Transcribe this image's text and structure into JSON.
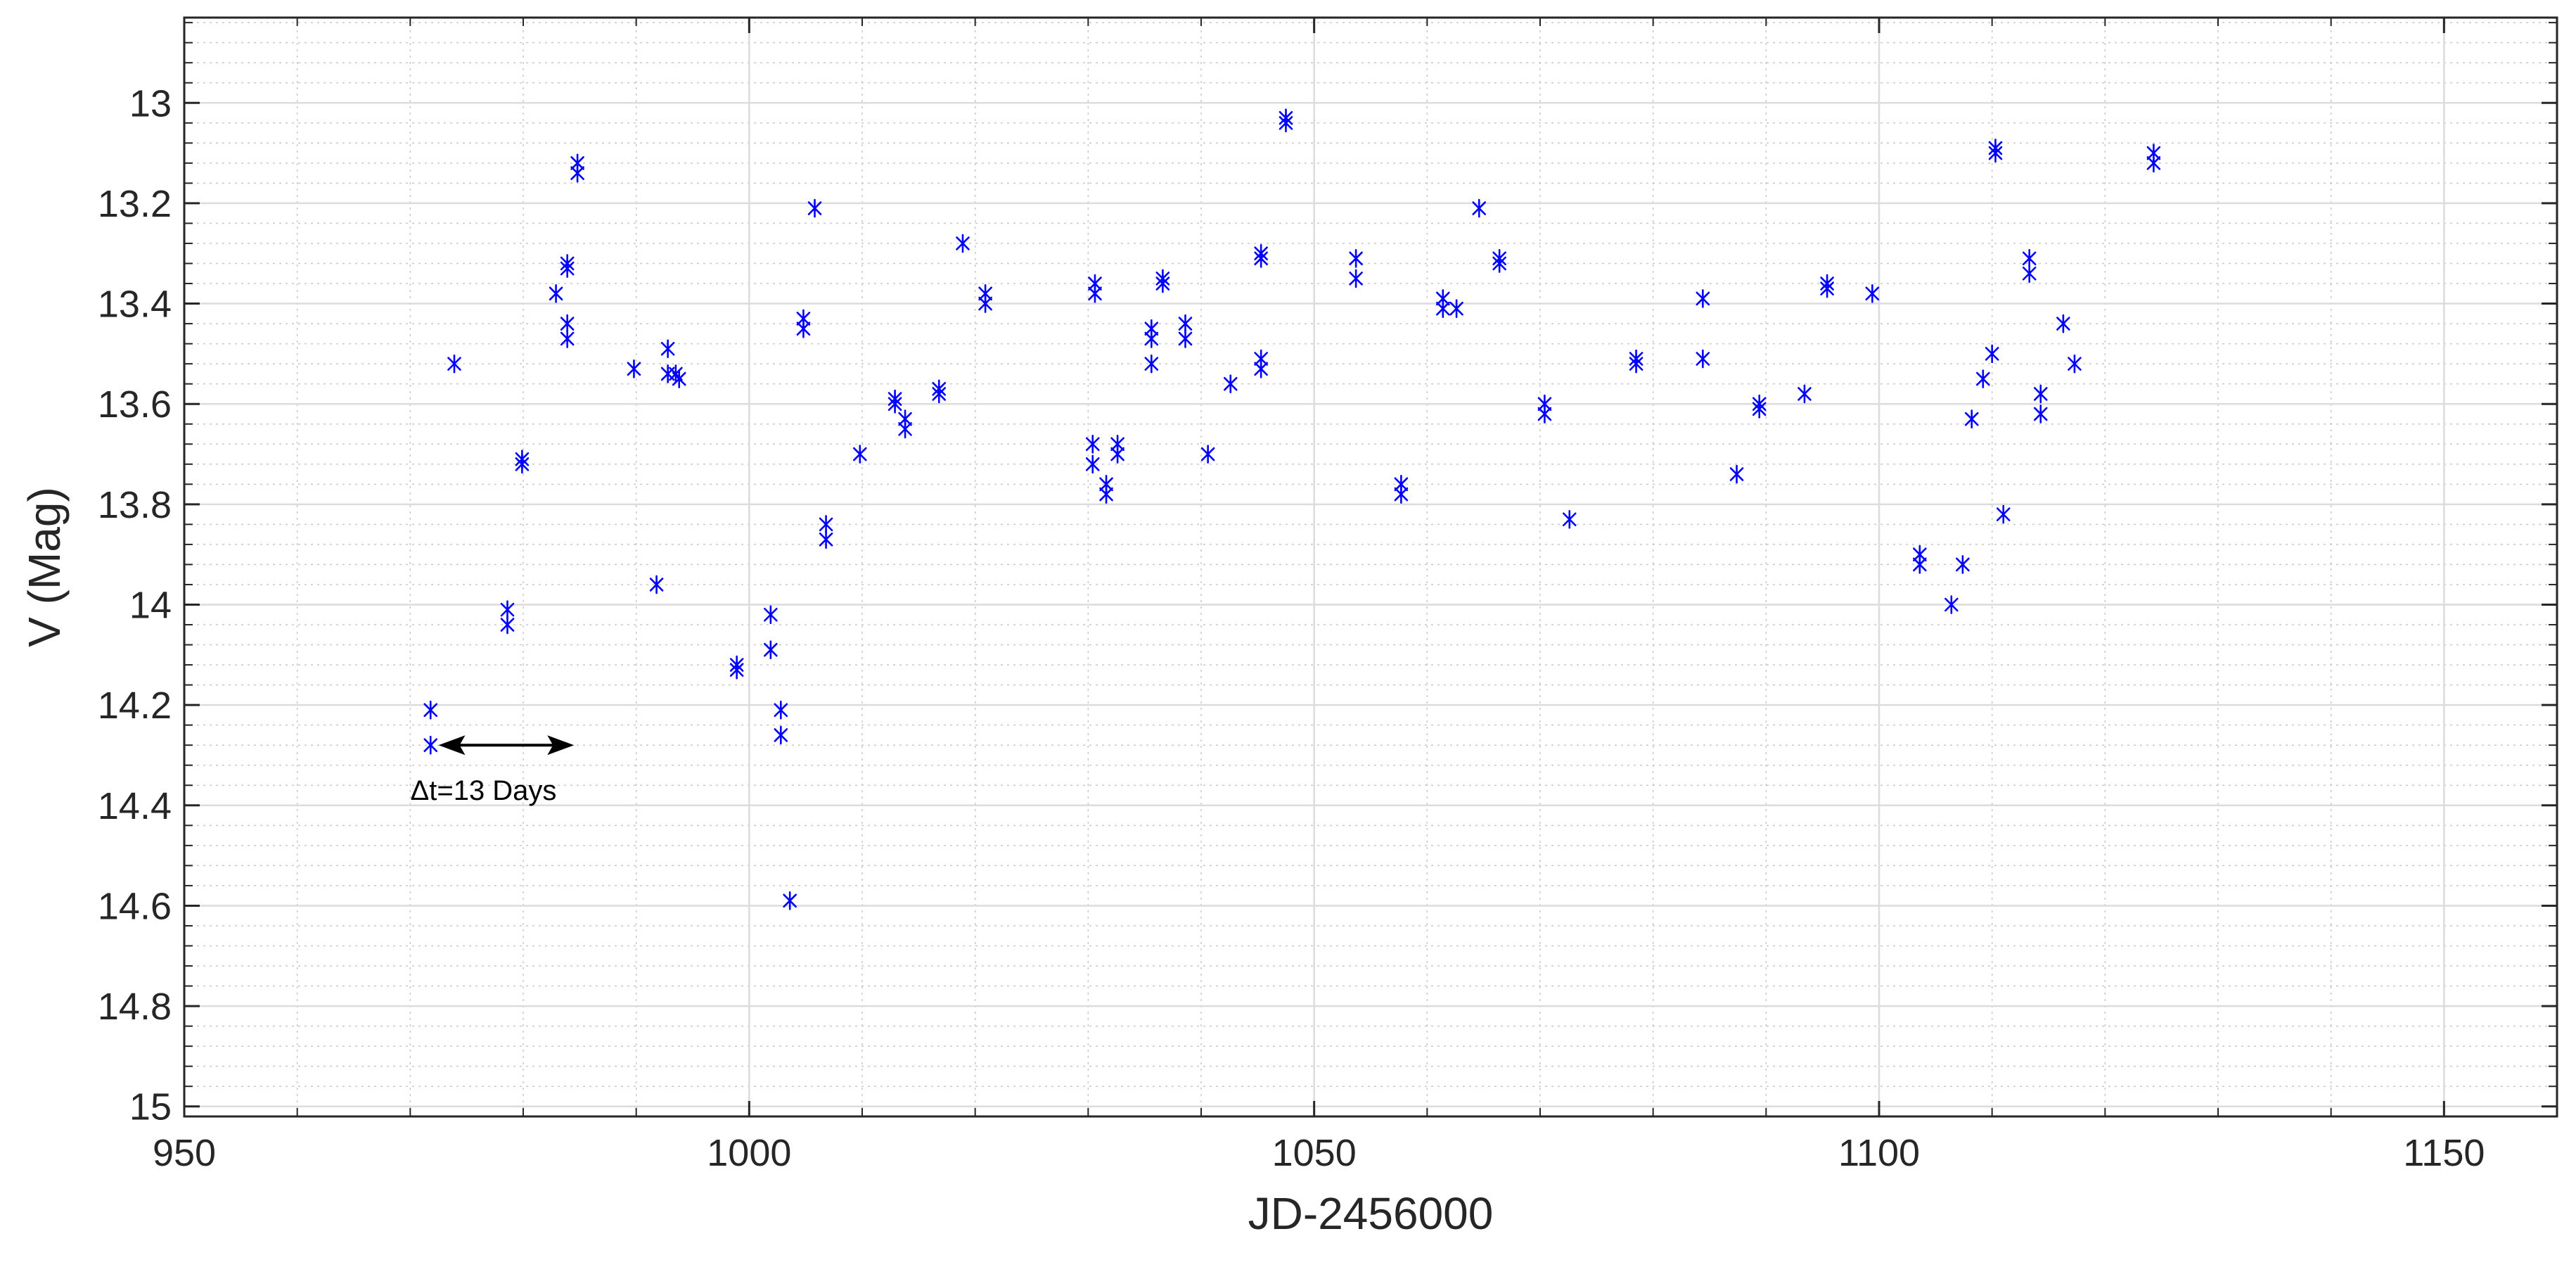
{
  "chart_data": {
    "type": "scatter",
    "title": "",
    "xlabel": "JD-2456000",
    "ylabel": "V (Mag)",
    "xlim": [
      950,
      1160
    ],
    "ylim": [
      12.83,
      15.02
    ],
    "y_reversed": true,
    "grid": true,
    "minor_grid": true,
    "marker": "asterisk",
    "marker_color": "#0000ff",
    "x_ticks": [
      950,
      1000,
      1050,
      1100,
      1150
    ],
    "x_tick_labels": [
      "950",
      "1000",
      "1050",
      "1100",
      "1150"
    ],
    "y_ticks": [
      13,
      13.2,
      13.4,
      13.6,
      13.8,
      14,
      14.2,
      14.4,
      14.6,
      14.8,
      15
    ],
    "y_tick_labels": [
      "13",
      "13.2",
      "13.4",
      "13.6",
      "13.8",
      "14",
      "14.2",
      "14.4",
      "14.6",
      "14.8",
      "15"
    ],
    "annotation": {
      "text": "Δt=13 Days",
      "arrow_from": [
        972.5,
        14.28
      ],
      "arrow_to": [
        984.5,
        14.28
      ]
    },
    "series": [
      {
        "points": [
          [
            971.8,
            14.21
          ],
          [
            971.8,
            14.28
          ],
          [
            973.9,
            13.52
          ],
          [
            978.6,
            14.01
          ],
          [
            978.6,
            14.04
          ],
          [
            979.9,
            13.71
          ],
          [
            979.9,
            13.72
          ],
          [
            982.9,
            13.38
          ],
          [
            983.9,
            13.32
          ],
          [
            983.9,
            13.33
          ],
          [
            983.9,
            13.44
          ],
          [
            983.9,
            13.47
          ],
          [
            984.8,
            13.12
          ],
          [
            984.8,
            13.14
          ],
          [
            989.8,
            13.53
          ],
          [
            991.8,
            13.96
          ],
          [
            992.8,
            13.49
          ],
          [
            992.8,
            13.54
          ],
          [
            993.5,
            13.54
          ],
          [
            993.8,
            13.55
          ],
          [
            998.9,
            14.12
          ],
          [
            998.9,
            14.13
          ],
          [
            1001.9,
            14.02
          ],
          [
            1001.9,
            14.09
          ],
          [
            1002.8,
            14.21
          ],
          [
            1002.8,
            14.26
          ],
          [
            1003.6,
            14.59
          ],
          [
            1004.8,
            13.43
          ],
          [
            1004.8,
            13.45
          ],
          [
            1005.8,
            13.21
          ],
          [
            1006.8,
            13.84
          ],
          [
            1006.8,
            13.87
          ],
          [
            1009.8,
            13.7
          ],
          [
            1012.9,
            13.59
          ],
          [
            1012.9,
            13.6
          ],
          [
            1013.8,
            13.63
          ],
          [
            1013.8,
            13.65
          ],
          [
            1016.8,
            13.57
          ],
          [
            1016.8,
            13.58
          ],
          [
            1018.9,
            13.28
          ],
          [
            1020.9,
            13.38
          ],
          [
            1020.9,
            13.4
          ],
          [
            1030.4,
            13.68
          ],
          [
            1030.4,
            13.72
          ],
          [
            1030.6,
            13.36
          ],
          [
            1030.6,
            13.38
          ],
          [
            1031.6,
            13.76
          ],
          [
            1031.6,
            13.78
          ],
          [
            1032.6,
            13.68
          ],
          [
            1032.6,
            13.7
          ],
          [
            1035.6,
            13.45
          ],
          [
            1035.6,
            13.47
          ],
          [
            1035.6,
            13.52
          ],
          [
            1036.6,
            13.35
          ],
          [
            1036.6,
            13.36
          ],
          [
            1038.6,
            13.44
          ],
          [
            1038.6,
            13.47
          ],
          [
            1040.6,
            13.7
          ],
          [
            1042.6,
            13.56
          ],
          [
            1045.3,
            13.3
          ],
          [
            1045.3,
            13.31
          ],
          [
            1045.3,
            13.51
          ],
          [
            1045.3,
            13.53
          ],
          [
            1047.5,
            13.03
          ],
          [
            1047.5,
            13.04
          ],
          [
            1053.7,
            13.31
          ],
          [
            1053.7,
            13.35
          ],
          [
            1057.7,
            13.76
          ],
          [
            1057.7,
            13.78
          ],
          [
            1061.4,
            13.39
          ],
          [
            1061.4,
            13.41
          ],
          [
            1062.6,
            13.41
          ],
          [
            1064.6,
            13.21
          ],
          [
            1066.4,
            13.31
          ],
          [
            1066.4,
            13.32
          ],
          [
            1070.4,
            13.6
          ],
          [
            1070.4,
            13.62
          ],
          [
            1072.6,
            13.83
          ],
          [
            1078.5,
            13.51
          ],
          [
            1078.5,
            13.52
          ],
          [
            1084.4,
            13.39
          ],
          [
            1084.4,
            13.51
          ],
          [
            1087.4,
            13.74
          ],
          [
            1089.4,
            13.6
          ],
          [
            1089.4,
            13.61
          ],
          [
            1093.4,
            13.58
          ],
          [
            1095.4,
            13.36
          ],
          [
            1095.4,
            13.37
          ],
          [
            1099.4,
            13.38
          ],
          [
            1103.6,
            13.9
          ],
          [
            1103.6,
            13.92
          ],
          [
            1106.4,
            14.0
          ],
          [
            1107.4,
            13.92
          ],
          [
            1108.2,
            13.63
          ],
          [
            1109.2,
            13.55
          ],
          [
            1110.0,
            13.5
          ],
          [
            1110.3,
            13.09
          ],
          [
            1110.3,
            13.1
          ],
          [
            1111.0,
            13.82
          ],
          [
            1113.3,
            13.31
          ],
          [
            1113.3,
            13.34
          ],
          [
            1114.3,
            13.58
          ],
          [
            1114.3,
            13.62
          ],
          [
            1116.3,
            13.44
          ],
          [
            1117.3,
            13.52
          ],
          [
            1124.3,
            13.1
          ],
          [
            1124.3,
            13.12
          ]
        ]
      }
    ]
  }
}
